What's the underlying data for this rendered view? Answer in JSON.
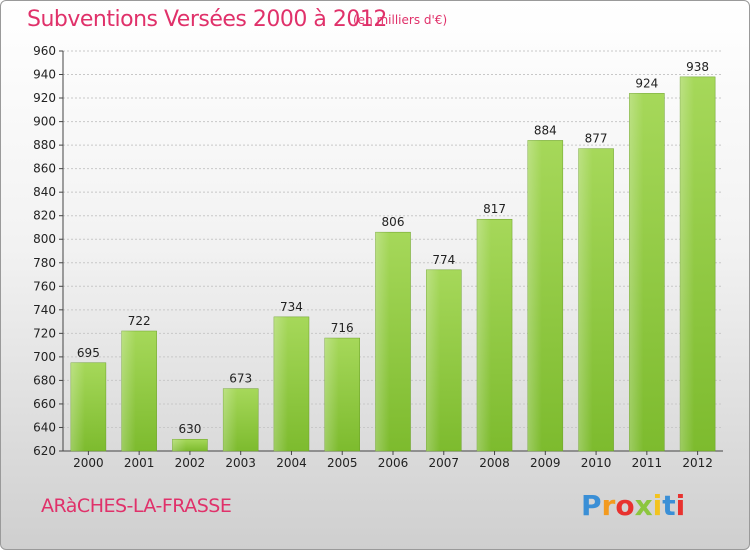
{
  "chart_data": {
    "type": "bar",
    "title": "Subventions Versées 2000 à 2012",
    "subtitle": "(en milliers d'€)",
    "categories": [
      "2000",
      "2001",
      "2002",
      "2003",
      "2004",
      "2005",
      "2006",
      "2007",
      "2008",
      "2009",
      "2010",
      "2011",
      "2012"
    ],
    "values": [
      695,
      722,
      630,
      673,
      734,
      716,
      806,
      774,
      817,
      884,
      877,
      924,
      938
    ],
    "ylim": [
      620,
      960
    ],
    "yticks": [
      620,
      640,
      660,
      680,
      700,
      720,
      740,
      760,
      780,
      800,
      820,
      840,
      860,
      880,
      900,
      920,
      940,
      960
    ],
    "grid": true,
    "bar_color": "#7dbb2e",
    "bar_color_light": "#a6d85a"
  },
  "footer": {
    "place": "ARàCHES-LA-FRASSE",
    "logo_letters": [
      "P",
      "r",
      "o",
      "x",
      "i",
      "t",
      "i"
    ],
    "logo_colors": [
      "#3a8fd6",
      "#f39a1e",
      "#e8322f",
      "#8cc63e",
      "#f3c31e",
      "#3a8fd6",
      "#e8322f"
    ]
  },
  "colors": {
    "accent": "#e0316a",
    "grid": "#c8c8c8"
  }
}
